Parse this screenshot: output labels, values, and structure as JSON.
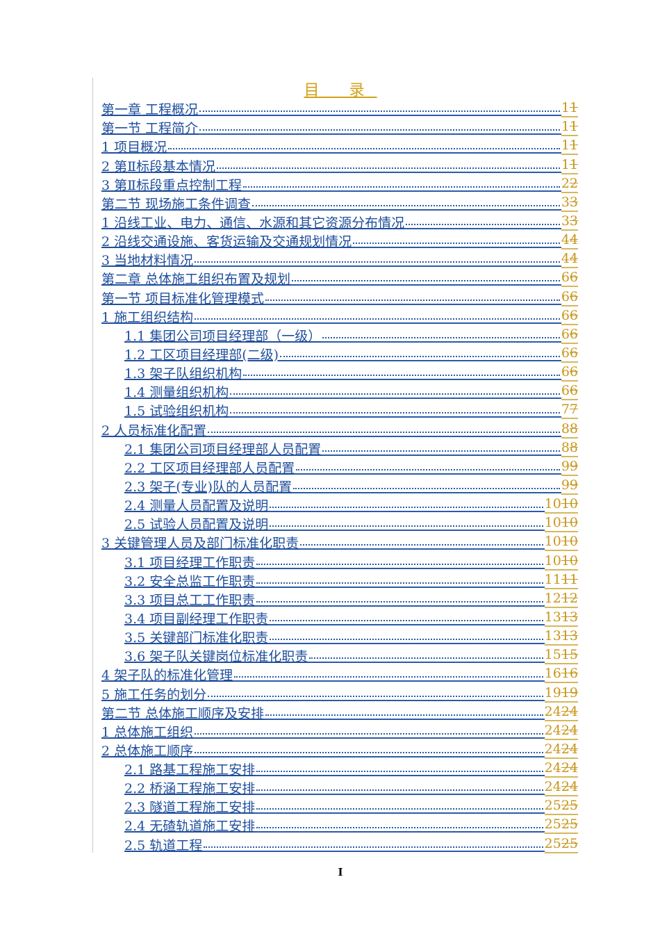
{
  "title": "目 录",
  "footer_page": "I",
  "colors": {
    "link": "#1f4e9c",
    "page_number": "#c8961a"
  },
  "entries": [
    {
      "text": "第一章 工程概况",
      "level": 0,
      "page_new": "1",
      "page_old": "1"
    },
    {
      "text": "第一节 工程简介",
      "level": 0,
      "page_new": "1",
      "page_old": "1"
    },
    {
      "text": "1 项目概况",
      "level": 0,
      "page_new": "1",
      "page_old": "1"
    },
    {
      "text": "2 第Ⅱ标段基本情况",
      "level": 0,
      "page_new": "1",
      "page_old": "1"
    },
    {
      "text": "3 第Ⅱ标段重点控制工程",
      "level": 0,
      "page_new": "2",
      "page_old": "2"
    },
    {
      "text": "第二节 现场施工条件调查",
      "level": 0,
      "page_new": "3",
      "page_old": "3"
    },
    {
      "text": "1 沿线工业、电力、通信、水源和其它资源分布情况",
      "level": 0,
      "page_new": "3",
      "page_old": "3"
    },
    {
      "text": "2 沿线交通设施、客货运输及交通规划情况",
      "level": 0,
      "page_new": "4",
      "page_old": "4"
    },
    {
      "text": "3 当地材料情况",
      "level": 0,
      "page_new": "4",
      "page_old": "4"
    },
    {
      "text": "第二章 总体施工组织布置及规划",
      "level": 0,
      "page_new": "6",
      "page_old": "6"
    },
    {
      "text": "第一节 项目标准化管理模式",
      "level": 0,
      "page_new": "6",
      "page_old": "6"
    },
    {
      "text": "1 施工组织结构",
      "level": 0,
      "page_new": "6",
      "page_old": "6"
    },
    {
      "text": "1.1 集团公司项目经理部（一级）",
      "level": 1,
      "page_new": "6",
      "page_old": "6"
    },
    {
      "text": "1.2 工区项目经理部(二级)",
      "level": 1,
      "page_new": "6",
      "page_old": "6"
    },
    {
      "text": "1.3 架子队组织机构",
      "level": 1,
      "page_new": "6",
      "page_old": "6"
    },
    {
      "text": "1.4 测量组织机构",
      "level": 1,
      "page_new": "6",
      "page_old": "6"
    },
    {
      "text": "1.5 试验组织机构",
      "level": 1,
      "page_new": "7",
      "page_old": "7"
    },
    {
      "text": "2 人员标准化配置",
      "level": 0,
      "page_new": "8",
      "page_old": "8"
    },
    {
      "text": "2.1 集团公司项目经理部人员配置",
      "level": 1,
      "page_new": "8",
      "page_old": "8"
    },
    {
      "text": "2.2 工区项目经理部人员配置",
      "level": 1,
      "page_new": "9",
      "page_old": "9"
    },
    {
      "text": "2.3 架子(专业)队的人员配置",
      "level": 1,
      "page_new": "9",
      "page_old": "9"
    },
    {
      "text": "2.4 测量人员配置及说明",
      "level": 1,
      "page_new": "10",
      "page_old": "10"
    },
    {
      "text": "2.5 试验人员配置及说明",
      "level": 1,
      "page_new": "10",
      "page_old": "10"
    },
    {
      "text": "3 关键管理人员及部门标准化职责",
      "level": 0,
      "page_new": "10",
      "page_old": "10"
    },
    {
      "text": "3.1 项目经理工作职责",
      "level": 1,
      "page_new": "10",
      "page_old": "10"
    },
    {
      "text": "3.2 安全总监工作职责",
      "level": 1,
      "page_new": "11",
      "page_old": "11"
    },
    {
      "text": "3.3 项目总工工作职责",
      "level": 1,
      "page_new": "12",
      "page_old": "12"
    },
    {
      "text": "3.4 项目副经理工作职责",
      "level": 1,
      "page_new": "13",
      "page_old": "13"
    },
    {
      "text": "3.5 关键部门标准化职责",
      "level": 1,
      "page_new": "13",
      "page_old": "13"
    },
    {
      "text": "3.6 架子队关键岗位标准化职责",
      "level": 1,
      "page_new": "15",
      "page_old": "15"
    },
    {
      "text": "4 架子队的标准化管理",
      "level": 0,
      "page_new": "16",
      "page_old": "16"
    },
    {
      "text": "5 施工任务的划分",
      "level": 0,
      "page_new": "19",
      "page_old": "19"
    },
    {
      "text": "第二节 总体施工顺序及安排",
      "level": 0,
      "page_new": "24",
      "page_old": "24"
    },
    {
      "text": "1 总体施工组织",
      "level": 0,
      "page_new": "24",
      "page_old": "24"
    },
    {
      "text": "2 总体施工顺序",
      "level": 0,
      "page_new": "24",
      "page_old": "24"
    },
    {
      "text": "2.1 路基工程施工安排",
      "level": 1,
      "page_new": "24",
      "page_old": "24"
    },
    {
      "text": "2.2 桥涵工程施工安排",
      "level": 1,
      "page_new": "24",
      "page_old": "24"
    },
    {
      "text": "2.3 隧道工程施工安排",
      "level": 1,
      "page_new": "25",
      "page_old": "25"
    },
    {
      "text": "2.4 无碴轨道施工安排",
      "level": 1,
      "page_new": "25",
      "page_old": "25"
    },
    {
      "text": "2.5 轨道工程",
      "level": 1,
      "page_new": "25",
      "page_old": "25"
    }
  ]
}
